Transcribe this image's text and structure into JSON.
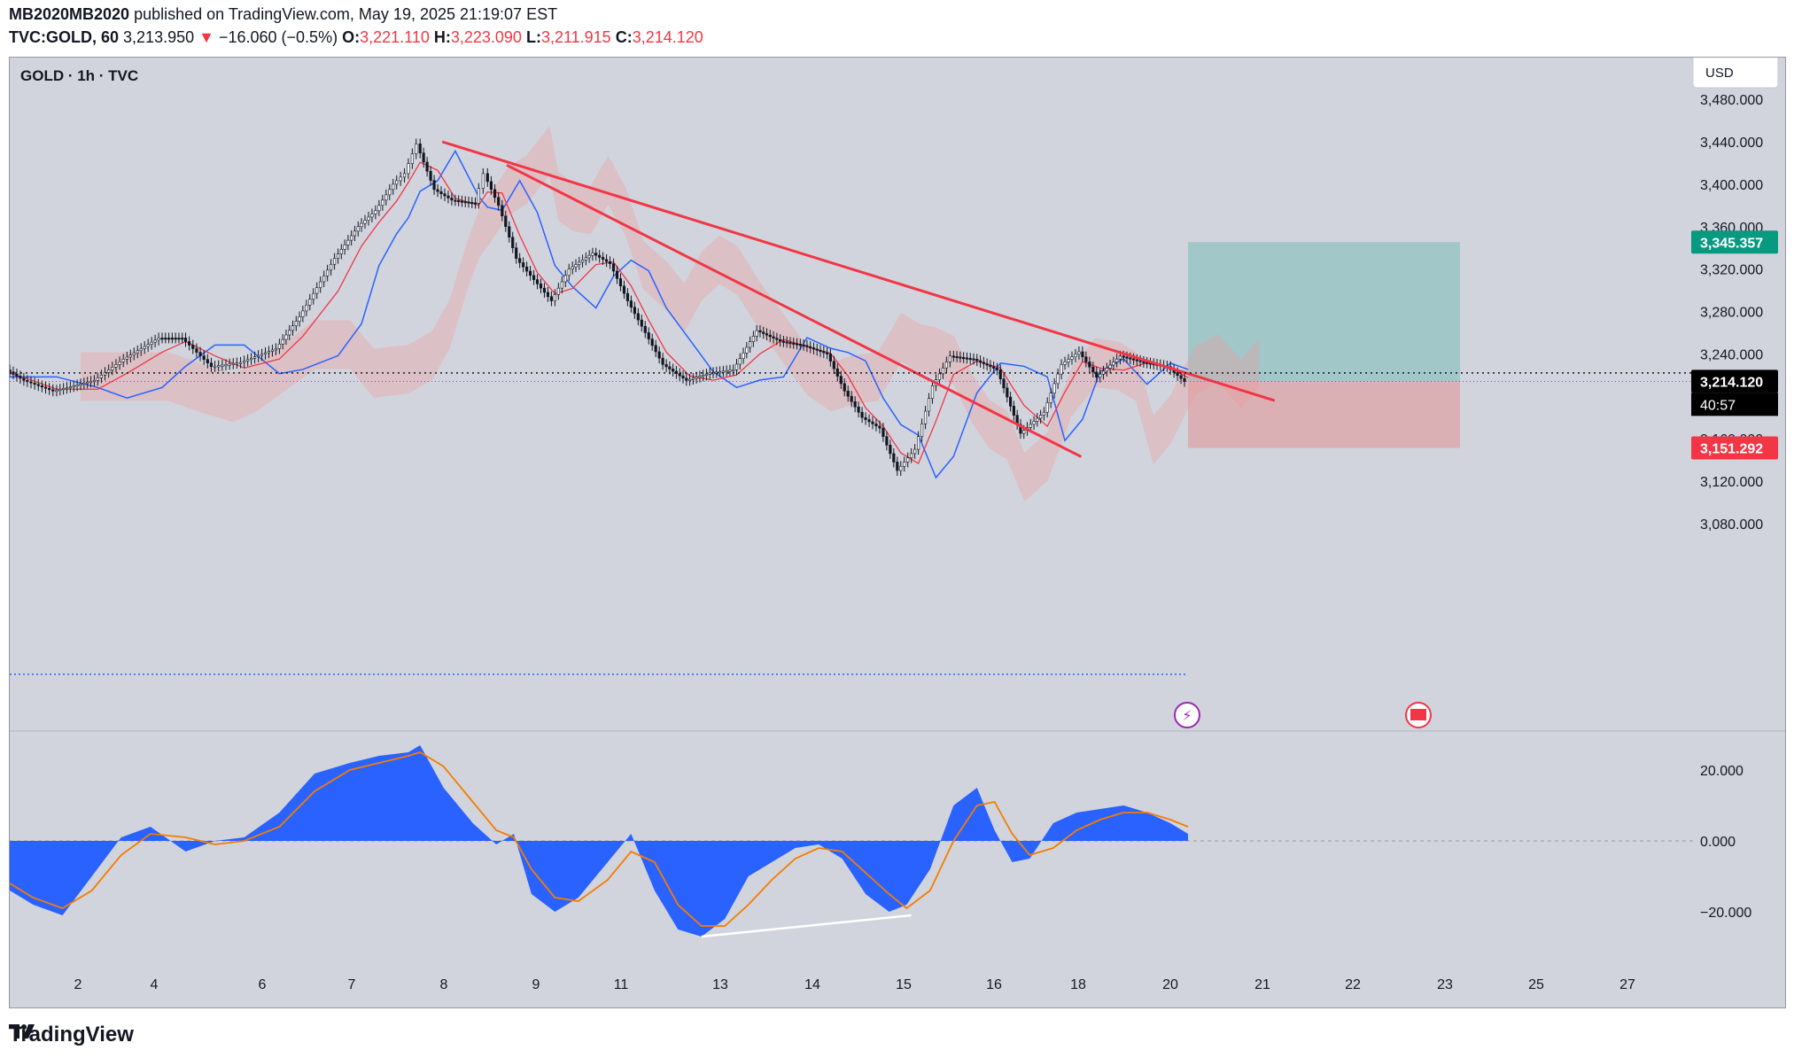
{
  "header": {
    "author": "MB2020MB2020",
    "published_text": "published on TradingView.com, May 19, 2025 21:19:07 EST",
    "symbol": "TVC:GOLD, 60",
    "price": "3,213.950",
    "change_arrow": "▼",
    "change": "−16.060 (−0.5%)",
    "o_label": "O:",
    "o": "3,221.110",
    "h_label": "H:",
    "h": "3,223.090",
    "l_label": "L:",
    "l": "3,211.915",
    "c_label": "C:",
    "c": "3,214.120"
  },
  "legend": {
    "title": "GOLD · 1h · TVC"
  },
  "currency_button": "USD",
  "footer": {
    "brand": "TradingView"
  },
  "colors": {
    "background": "#d1d4dc",
    "up_trendline": "#f23645",
    "tenkan": "#f23645",
    "kijun": "#2962ff",
    "macd_fill": "#2962ff",
    "signal": "#f57c00",
    "target_zone": "#26a69a",
    "stop_zone": "#ef5350"
  },
  "chart_data": {
    "type": "line",
    "title": "GOLD · 1h · TVC",
    "price_axis": {
      "ticks": [
        3480,
        3440,
        3400,
        3360,
        3320,
        3280,
        3240,
        3160,
        3120,
        3080
      ],
      "tick_labels": [
        "3,480.000",
        "3,440.000",
        "3,400.000",
        "3,360.000",
        "3,320.000",
        "3,280.000",
        "3,240.000",
        "3,160.000",
        "3,120.000",
        "3,080.000"
      ],
      "range": [
        3040,
        3510
      ]
    },
    "time_axis": {
      "tick_labels": [
        "2",
        "4",
        "6",
        "7",
        "8",
        "9",
        "11",
        "13",
        "14",
        "15",
        "16",
        "18",
        "20",
        "21",
        "22",
        "23",
        "25",
        "27"
      ]
    },
    "price_labels": {
      "target": {
        "value": 3345.357,
        "text": "3,345.357"
      },
      "current": {
        "value": 3214.12,
        "text": "3,214.120",
        "countdown": "40:57"
      },
      "stop": {
        "value": 3151.292,
        "text": "3,151.292"
      }
    },
    "position": {
      "entry": 3214.12,
      "target": 3345.357,
      "stop": 3151.292
    },
    "price_path": {
      "x": [
        0,
        0.3,
        0.8,
        1.5,
        2,
        2.6,
        3,
        3.5,
        4,
        4.6,
        5,
        5.6,
        6,
        6.3,
        6.6,
        6.8,
        7,
        7.3,
        7.6,
        8,
        8.15,
        8.4,
        8.7,
        9,
        9.3,
        9.6,
        10,
        10.3,
        10.6,
        10.9,
        11.2,
        11.6,
        12,
        12.4,
        12.8,
        13.2,
        13.6,
        14,
        14.3,
        14.6,
        14.9,
        15.2,
        15.5,
        15.8,
        16.1,
        16.5,
        16.9,
        17.3,
        17.7,
        18,
        18.3,
        18.6,
        19,
        19.4,
        19.8,
        20.1
      ],
      "y": [
        3225,
        3215,
        3205,
        3215,
        3235,
        3255,
        3255,
        3228,
        3232,
        3245,
        3275,
        3330,
        3360,
        3375,
        3400,
        3410,
        3438,
        3395,
        3385,
        3382,
        3410,
        3380,
        3330,
        3310,
        3290,
        3320,
        3335,
        3325,
        3290,
        3260,
        3230,
        3215,
        3222,
        3225,
        3262,
        3252,
        3248,
        3240,
        3205,
        3180,
        3170,
        3130,
        3150,
        3210,
        3238,
        3235,
        3225,
        3165,
        3185,
        3230,
        3242,
        3218,
        3238,
        3232,
        3228,
        3214
      ]
    },
    "trendlines": [
      {
        "x": [
          7,
          21.2
        ],
        "y": [
          3440,
          3196
        ]
      },
      {
        "x": [
          8.1,
          17.9
        ],
        "y": [
          3418,
          3143
        ]
      }
    ],
    "macd": {
      "zero": 0,
      "tick_labels": [
        "20.000",
        "0.000",
        "−20.000"
      ],
      "x": [
        0,
        0.4,
        0.9,
        1.4,
        1.9,
        2.4,
        3,
        3.5,
        4,
        4.6,
        5.2,
        5.8,
        6.3,
        6.8,
        7,
        7.4,
        7.9,
        8.3,
        8.6,
        8.9,
        9.3,
        9.7,
        10.2,
        10.6,
        11,
        11.4,
        11.8,
        12.2,
        12.6,
        13,
        13.4,
        13.8,
        14.2,
        14.6,
        15,
        15.3,
        15.7,
        16.1,
        16.5,
        16.8,
        17.1,
        17.4,
        17.8,
        18.2,
        18.6,
        19,
        19.4,
        19.8,
        20.1
      ],
      "macd": [
        -14,
        -18,
        -21,
        -10,
        1,
        4,
        -3,
        0,
        1,
        8,
        19,
        22,
        24,
        25,
        27,
        15,
        5,
        -1,
        2,
        -15,
        -20,
        -16,
        -6,
        2,
        -14,
        -25,
        -27,
        -22,
        -10,
        -6,
        -2,
        -1,
        -5,
        -15,
        -20,
        -18,
        -8,
        10,
        15,
        3,
        -6,
        -5,
        5,
        8,
        9,
        10,
        8,
        5,
        2
      ],
      "signal": [
        -12,
        -16,
        -19,
        -14,
        -4,
        2,
        1,
        -1,
        0,
        4,
        14,
        20,
        22,
        24,
        25,
        21,
        11,
        3,
        1,
        -8,
        -16,
        -17,
        -11,
        -3,
        -6,
        -18,
        -24,
        -24,
        -18,
        -11,
        -5,
        -2,
        -3,
        -9,
        -15,
        -19,
        -14,
        0,
        10,
        11,
        2,
        -4,
        -2,
        3,
        6,
        8,
        8,
        6,
        4
      ]
    },
    "annotations": [
      "lightning event marker",
      "US flag economic event marker"
    ],
    "grid": false
  }
}
